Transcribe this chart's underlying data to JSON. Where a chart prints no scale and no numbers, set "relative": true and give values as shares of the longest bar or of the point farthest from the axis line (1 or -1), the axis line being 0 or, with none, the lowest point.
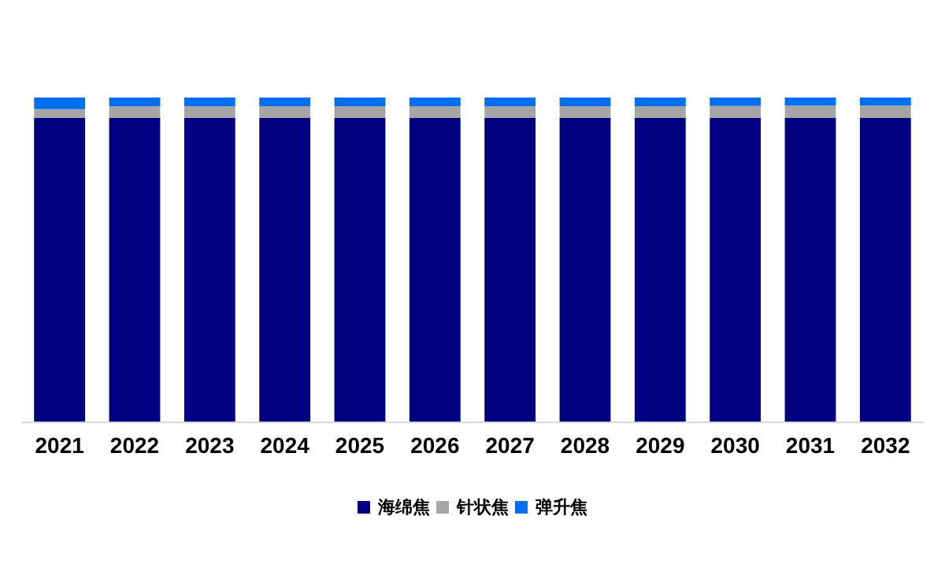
{
  "chart_data": {
    "type": "bar",
    "stacked": true,
    "relative": true,
    "categories": [
      "2021",
      "2022",
      "2023",
      "2024",
      "2025",
      "2026",
      "2027",
      "2028",
      "2029",
      "2030",
      "2031",
      "2032"
    ],
    "series": [
      {
        "name": "海绵焦",
        "color": "#000080",
        "values": [
          0.937,
          0.937,
          0.937,
          0.937,
          0.937,
          0.937,
          0.937,
          0.937,
          0.937,
          0.937,
          0.937,
          0.937
        ]
      },
      {
        "name": "针状焦",
        "color": "#a6a6a6",
        "values": [
          0.027,
          0.036,
          0.036,
          0.036,
          0.036,
          0.036,
          0.036,
          0.036,
          0.036,
          0.037,
          0.038,
          0.038
        ]
      },
      {
        "name": "弹升焦",
        "color": "#0070f0",
        "values": [
          0.036,
          0.027,
          0.027,
          0.027,
          0.027,
          0.027,
          0.027,
          0.027,
          0.027,
          0.026,
          0.025,
          0.025
        ]
      }
    ],
    "legend": "bottom"
  }
}
